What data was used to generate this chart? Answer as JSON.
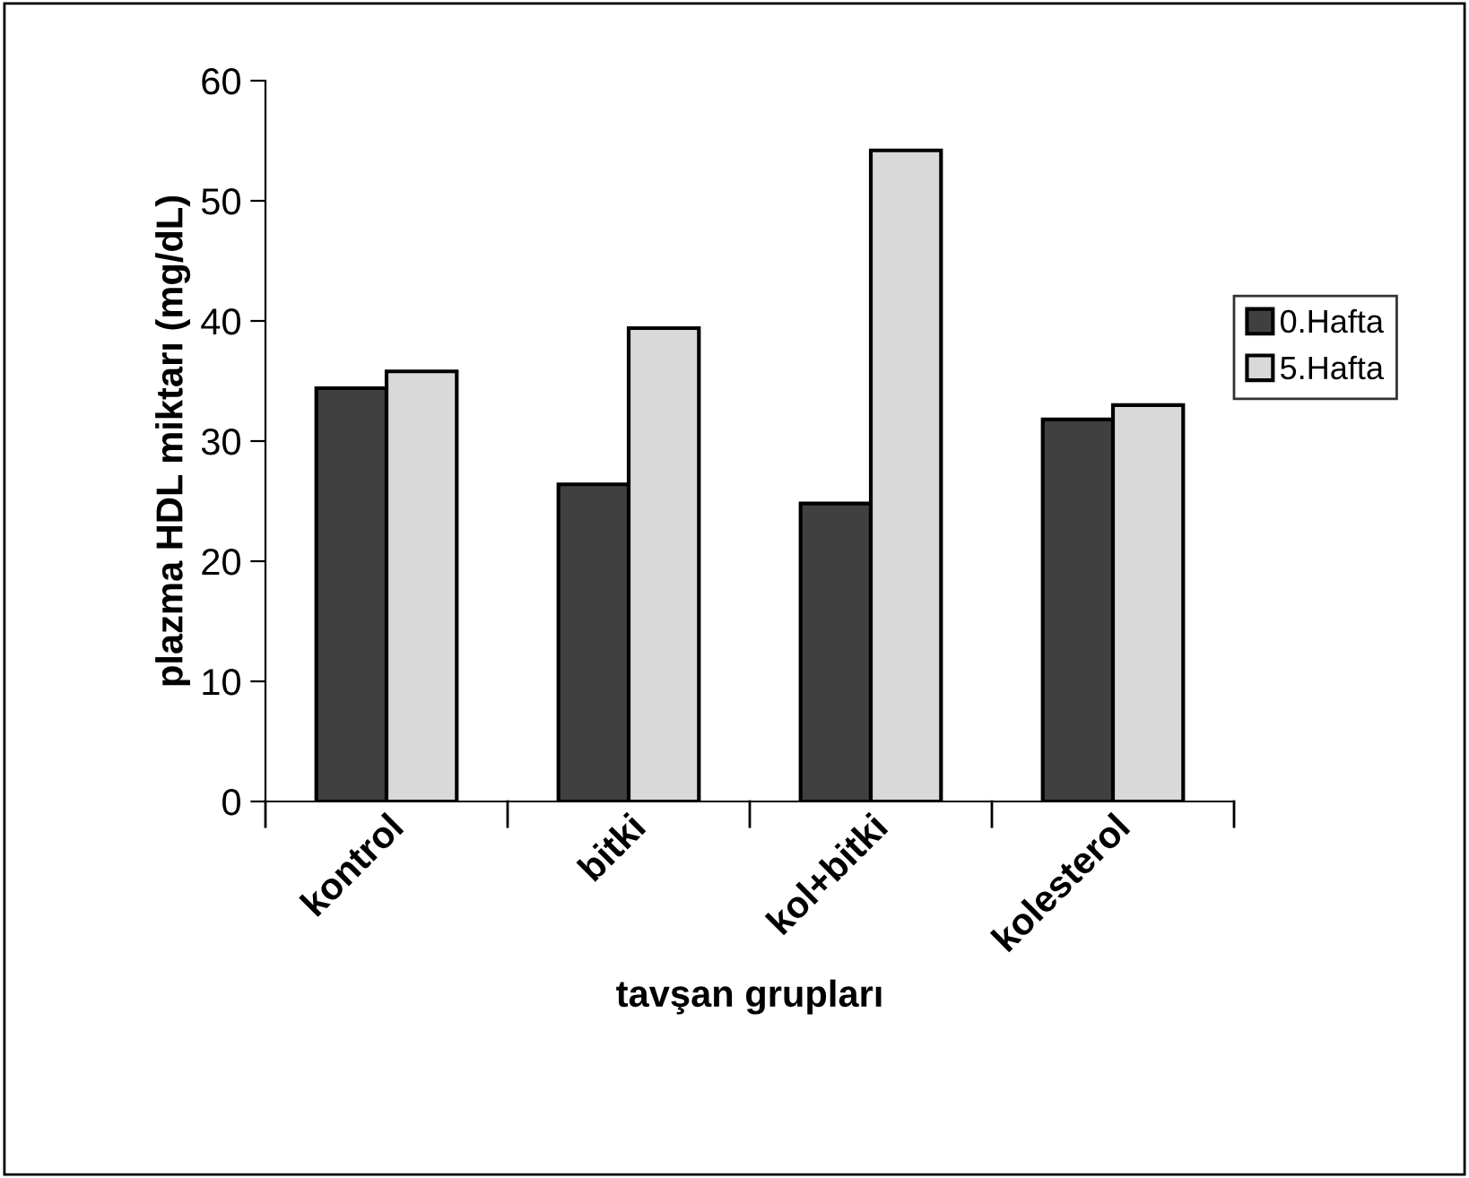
{
  "chart_data": {
    "type": "bar",
    "xlabel": "tavşan grupları",
    "ylabel": "plazma HDL miktarı (mg/dL)",
    "categories": [
      "kontrol",
      "bitki",
      "kol+bitki",
      "kolesterol"
    ],
    "series": [
      {
        "name": "0.Hafta",
        "color": "#404040",
        "values": [
          34.4,
          26.4,
          24.8,
          31.8
        ]
      },
      {
        "name": "5.Hafta",
        "color": "#d9d9d9",
        "values": [
          35.8,
          39.4,
          54.2,
          33.0
        ]
      }
    ],
    "ylim": [
      0,
      60
    ],
    "yticks": [
      0,
      10,
      20,
      30,
      40,
      50,
      60
    ],
    "grid": false,
    "legend": "right"
  }
}
